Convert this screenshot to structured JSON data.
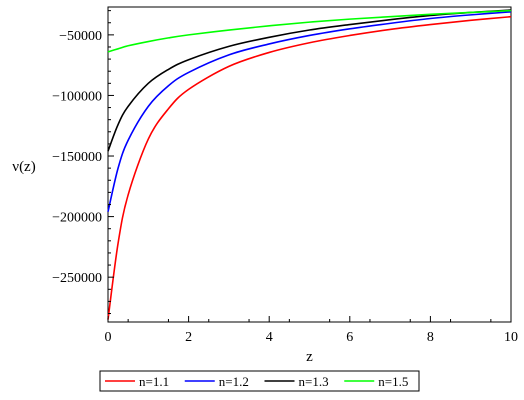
{
  "chart_data": {
    "type": "line",
    "title": "",
    "xlabel": "z",
    "ylabel": "ν(z)",
    "xlim": [
      0,
      10
    ],
    "ylim": [
      -287000,
      -27000
    ],
    "xticks": [
      0,
      2,
      4,
      6,
      8,
      10
    ],
    "xtick_labels": [
      "0",
      "2",
      "4",
      "6",
      "8",
      "10"
    ],
    "yticks": [
      -50000,
      -100000,
      -150000,
      -200000,
      -250000
    ],
    "ytick_labels": [
      "−50000",
      "−100000",
      "−150000",
      "−200000",
      "−250000"
    ],
    "grid": false,
    "legend_position": "bottom",
    "x": [
      0,
      0.25,
      0.5,
      1,
      1.5,
      2,
      3,
      4,
      5,
      6,
      7,
      8,
      9,
      10
    ],
    "series": [
      {
        "name": "n=1.1",
        "color": "#ff0000",
        "values": [
          -285000,
          -222000,
          -182000,
          -136000,
          -111000,
          -95000,
          -76000,
          -64500,
          -56500,
          -50500,
          -45500,
          -41500,
          -38000,
          -35000
        ]
      },
      {
        "name": "n=1.2",
        "color": "#0000ff",
        "values": [
          -196000,
          -160000,
          -137000,
          -109000,
          -92000,
          -81000,
          -66500,
          -57500,
          -50500,
          -45000,
          -40500,
          -36500,
          -33500,
          -31000
        ]
      },
      {
        "name": "n=1.3",
        "color": "#000000",
        "values": [
          -146000,
          -124000,
          -109000,
          -90000,
          -78500,
          -70500,
          -59500,
          -52000,
          -46000,
          -41500,
          -37500,
          -34000,
          -31500,
          -29500
        ]
      },
      {
        "name": "n=1.5",
        "color": "#00ff00",
        "values": [
          -64000,
          -61500,
          -59000,
          -55500,
          -52500,
          -50000,
          -46000,
          -42500,
          -39500,
          -37000,
          -35000,
          -33000,
          -31500,
          -30000
        ]
      }
    ]
  }
}
